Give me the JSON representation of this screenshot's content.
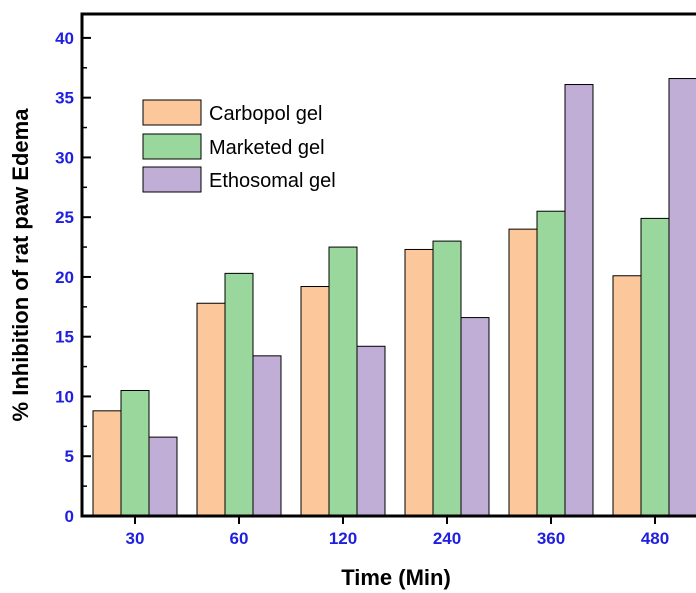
{
  "chart_data": {
    "type": "bar",
    "xlabel": "Time (Min)",
    "ylabel": "% Inhibition of rat paw Edema",
    "categories": [
      "30",
      "60",
      "120",
      "240",
      "360",
      "480"
    ],
    "ylim": [
      0,
      42
    ],
    "yticks": [
      "0",
      "5",
      "10",
      "15",
      "20",
      "25",
      "30",
      "35",
      "40"
    ],
    "grid": false,
    "legend_position": "top-left",
    "series": [
      {
        "name": "Carbopol gel",
        "color": "#fcc79a",
        "values": [
          8.8,
          17.8,
          19.2,
          22.3,
          24.0,
          20.1
        ]
      },
      {
        "name": "Marketed gel",
        "color": "#9ad79c",
        "values": [
          10.5,
          20.3,
          22.5,
          23.0,
          25.5,
          24.9
        ]
      },
      {
        "name": "Ethosomal gel",
        "color": "#c0aed6",
        "values": [
          6.6,
          13.4,
          14.2,
          16.6,
          36.1,
          36.6
        ]
      }
    ]
  }
}
